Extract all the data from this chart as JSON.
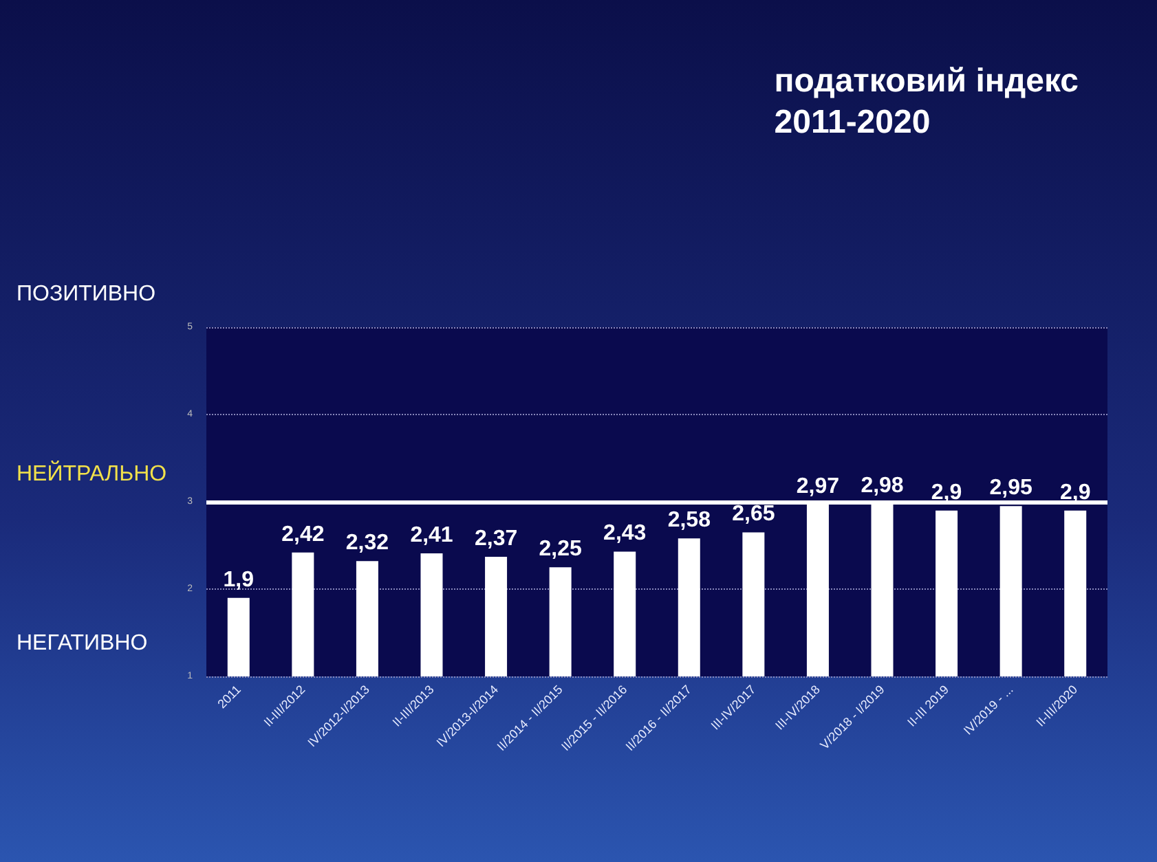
{
  "chart_data": {
    "type": "bar",
    "title": "податковий індекс",
    "subtitle": "2011-2020",
    "categories": [
      "2011",
      "II-III/2012",
      "IV/2012-I/2013",
      "II-III/2013",
      "IV/2013-I/2014",
      "II/2014 - II/2015",
      "II/2015 - II/2016",
      "II/2016 - II/2017",
      "III-IV/2017",
      "III-IV/2018",
      "V/2018 - I/2019",
      "II-III 2019",
      "IV/2019 - ...",
      "II-III/2020"
    ],
    "values": [
      1.9,
      2.42,
      2.32,
      2.41,
      2.37,
      2.25,
      2.43,
      2.58,
      2.65,
      2.97,
      2.98,
      2.9,
      2.95,
      2.9
    ],
    "value_labels": [
      "1,9",
      "2,42",
      "2,32",
      "2,41",
      "2,37",
      "2,25",
      "2,43",
      "2,58",
      "2,65",
      "2,97",
      "2,98",
      "2,9",
      "2,95",
      "2,9"
    ],
    "color": "#ffffff",
    "ylim": [
      1,
      5
    ],
    "yticks": [
      1,
      2,
      3,
      4,
      5
    ],
    "grid": "y",
    "ref_lines": [
      {
        "axis": "y",
        "value": 3,
        "label": "НЕЙТРАЛЬНО",
        "color": "#ffffff"
      }
    ],
    "annotations": [
      "ПОЗИТИВНО",
      "НЕГАТИВНО"
    ]
  }
}
